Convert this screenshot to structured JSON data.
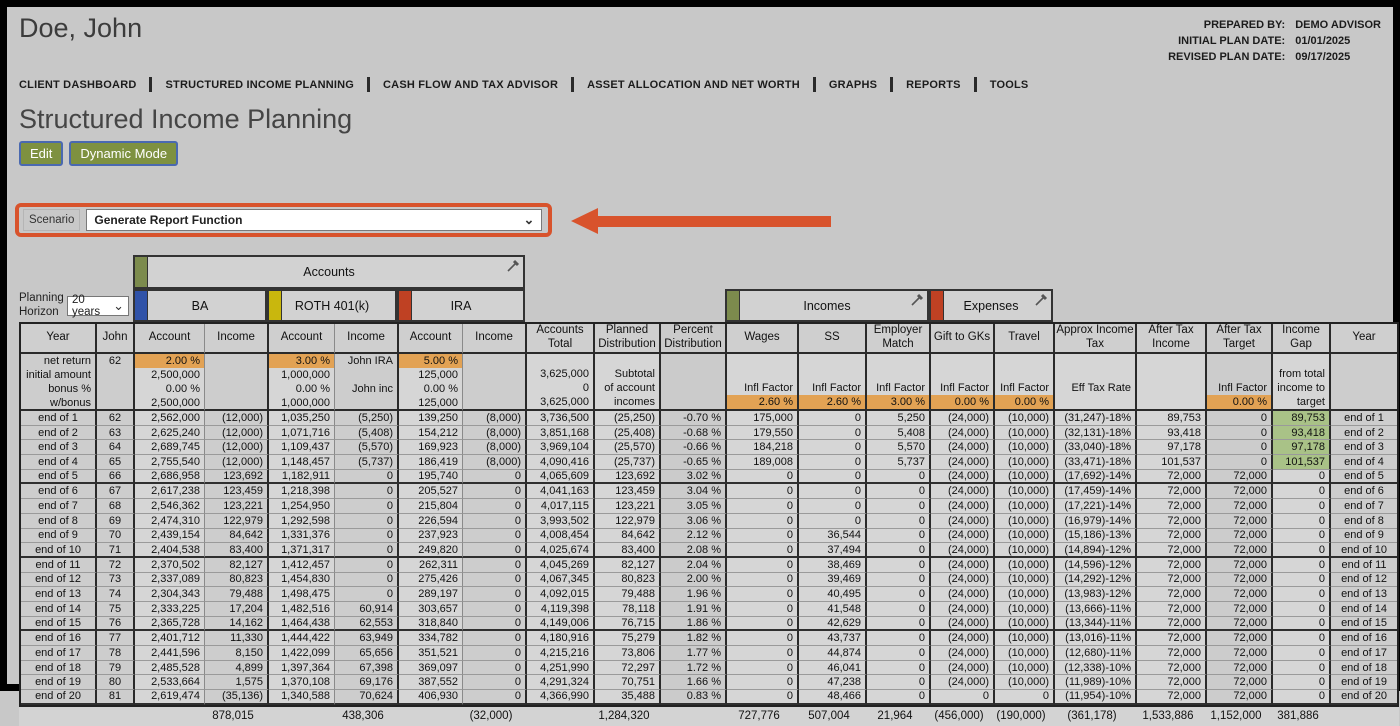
{
  "header": {
    "client_name": "Doe, John",
    "prepared_by_label": "PREPARED BY:",
    "prepared_by": "DEMO ADVISOR",
    "initial_plan_date_label": "INITIAL PLAN DATE:",
    "initial_plan_date": "01/01/2025",
    "revised_plan_date_label": "REVISED PLAN DATE:",
    "revised_plan_date": "09/17/2025"
  },
  "nav": {
    "items": [
      "CLIENT DASHBOARD",
      "STRUCTURED INCOME PLANNING",
      "CASH FLOW AND TAX ADVISOR",
      "ASSET ALLOCATION AND NET WORTH",
      "GRAPHS",
      "REPORTS",
      "TOOLS"
    ]
  },
  "page": {
    "title": "Structured Income Planning",
    "edit_button": "Edit",
    "dynamic_mode_button": "Dynamic Mode"
  },
  "scenario": {
    "label": "Scenario",
    "selected": "Generate Report Function"
  },
  "planning_horizon": {
    "label": "Planning Horizon",
    "selected": "20 years"
  },
  "table": {
    "groups": {
      "accounts": "Accounts",
      "ba": "BA",
      "roth": "ROTH 401(k)",
      "ira": "IRA",
      "incomes": "Incomes",
      "expenses": "Expenses"
    },
    "columns": [
      "Year",
      "John",
      "Account",
      "Income",
      "Account",
      "Income",
      "Account",
      "Income",
      "Accounts Total",
      "Planned Distribution",
      "Percent Distribution",
      "Wages",
      "SS",
      "Employer Match",
      "Gift to GKs",
      "Travel",
      "Approx Income Tax",
      "After Tax Income",
      "After Tax Target",
      "Income Gap",
      "Year"
    ],
    "info_rows": [
      [
        "net return",
        "62",
        "2.00 %",
        "",
        "3.00 %",
        "John IRA",
        "5.00 %",
        "",
        "",
        "",
        "",
        "",
        "",
        "",
        "",
        "",
        "",
        "",
        "",
        "",
        ""
      ],
      [
        "initial amount",
        "",
        "2,500,000",
        "",
        "1,000,000",
        "",
        "125,000",
        "",
        "3,625,000",
        "Subtotal",
        "",
        "",
        "",
        "",
        "",
        "",
        "",
        "",
        "",
        "from total",
        ""
      ],
      [
        "bonus %",
        "",
        "0.00 %",
        "",
        "0.00 %",
        "John inc",
        "0.00 %",
        "",
        "0",
        "of account",
        "",
        "Infl Factor",
        "Infl Factor",
        "Infl Factor",
        "Infl Factor",
        "Infl Factor",
        "Eff Tax Rate",
        "",
        "Infl Factor",
        "income to",
        ""
      ],
      [
        "w/bonus",
        "",
        "2,500,000",
        "",
        "1,000,000",
        "",
        "125,000",
        "",
        "3,625,000",
        "incomes",
        "",
        "2.60 %",
        "2.60 %",
        "3.00 %",
        "0.00 %",
        "0.00 %",
        "",
        "",
        "0.00 %",
        "target",
        ""
      ]
    ],
    "rows": [
      [
        "end of 1",
        "62",
        "2,562,000",
        "(12,000)",
        "1,035,250",
        "(5,250)",
        "139,250",
        "(8,000)",
        "3,736,500",
        "(25,250)",
        "-0.70 %",
        "175,000",
        "0",
        "5,250",
        "(24,000)",
        "(10,000)",
        "(31,247)-18%",
        "89,753",
        "0",
        "89,753",
        "end of 1"
      ],
      [
        "end of 2",
        "63",
        "2,625,240",
        "(12,000)",
        "1,071,716",
        "(5,408)",
        "154,212",
        "(8,000)",
        "3,851,168",
        "(25,408)",
        "-0.68 %",
        "179,550",
        "0",
        "5,408",
        "(24,000)",
        "(10,000)",
        "(32,131)-18%",
        "93,418",
        "0",
        "93,418",
        "end of 2"
      ],
      [
        "end of 3",
        "64",
        "2,689,745",
        "(12,000)",
        "1,109,437",
        "(5,570)",
        "169,923",
        "(8,000)",
        "3,969,104",
        "(25,570)",
        "-0.66 %",
        "184,218",
        "0",
        "5,570",
        "(24,000)",
        "(10,000)",
        "(33,040)-18%",
        "97,178",
        "0",
        "97,178",
        "end of 3"
      ],
      [
        "end of 4",
        "65",
        "2,755,540",
        "(12,000)",
        "1,148,457",
        "(5,737)",
        "186,419",
        "(8,000)",
        "4,090,416",
        "(25,737)",
        "-0.65 %",
        "189,008",
        "0",
        "5,737",
        "(24,000)",
        "(10,000)",
        "(33,471)-18%",
        "101,537",
        "0",
        "101,537",
        "end of 4"
      ],
      [
        "end of 5",
        "66",
        "2,686,958",
        "123,692",
        "1,182,911",
        "0",
        "195,740",
        "0",
        "4,065,609",
        "123,692",
        "3.02 %",
        "0",
        "0",
        "0",
        "(24,000)",
        "(10,000)",
        "(17,692)-14%",
        "72,000",
        "72,000",
        "0",
        "end of 5"
      ],
      [
        "end of 6",
        "67",
        "2,617,238",
        "123,459",
        "1,218,398",
        "0",
        "205,527",
        "0",
        "4,041,163",
        "123,459",
        "3.04 %",
        "0",
        "0",
        "0",
        "(24,000)",
        "(10,000)",
        "(17,459)-14%",
        "72,000",
        "72,000",
        "0",
        "end of 6"
      ],
      [
        "end of 7",
        "68",
        "2,546,362",
        "123,221",
        "1,254,950",
        "0",
        "215,804",
        "0",
        "4,017,115",
        "123,221",
        "3.05 %",
        "0",
        "0",
        "0",
        "(24,000)",
        "(10,000)",
        "(17,221)-14%",
        "72,000",
        "72,000",
        "0",
        "end of 7"
      ],
      [
        "end of 8",
        "69",
        "2,474,310",
        "122,979",
        "1,292,598",
        "0",
        "226,594",
        "0",
        "3,993,502",
        "122,979",
        "3.06 %",
        "0",
        "0",
        "0",
        "(24,000)",
        "(10,000)",
        "(16,979)-14%",
        "72,000",
        "72,000",
        "0",
        "end of 8"
      ],
      [
        "end of 9",
        "70",
        "2,439,154",
        "84,642",
        "1,331,376",
        "0",
        "237,923",
        "0",
        "4,008,454",
        "84,642",
        "2.12 %",
        "0",
        "36,544",
        "0",
        "(24,000)",
        "(10,000)",
        "(15,186)-13%",
        "72,000",
        "72,000",
        "0",
        "end of 9"
      ],
      [
        "end of 10",
        "71",
        "2,404,538",
        "83,400",
        "1,371,317",
        "0",
        "249,820",
        "0",
        "4,025,674",
        "83,400",
        "2.08 %",
        "0",
        "37,494",
        "0",
        "(24,000)",
        "(10,000)",
        "(14,894)-12%",
        "72,000",
        "72,000",
        "0",
        "end of 10"
      ],
      [
        "end of 11",
        "72",
        "2,370,502",
        "82,127",
        "1,412,457",
        "0",
        "262,311",
        "0",
        "4,045,269",
        "82,127",
        "2.04 %",
        "0",
        "38,469",
        "0",
        "(24,000)",
        "(10,000)",
        "(14,596)-12%",
        "72,000",
        "72,000",
        "0",
        "end of 11"
      ],
      [
        "end of 12",
        "73",
        "2,337,089",
        "80,823",
        "1,454,830",
        "0",
        "275,426",
        "0",
        "4,067,345",
        "80,823",
        "2.00 %",
        "0",
        "39,469",
        "0",
        "(24,000)",
        "(10,000)",
        "(14,292)-12%",
        "72,000",
        "72,000",
        "0",
        "end of 12"
      ],
      [
        "end of 13",
        "74",
        "2,304,343",
        "79,488",
        "1,498,475",
        "0",
        "289,197",
        "0",
        "4,092,015",
        "79,488",
        "1.96 %",
        "0",
        "40,495",
        "0",
        "(24,000)",
        "(10,000)",
        "(13,983)-12%",
        "72,000",
        "72,000",
        "0",
        "end of 13"
      ],
      [
        "end of 14",
        "75",
        "2,333,225",
        "17,204",
        "1,482,516",
        "60,914",
        "303,657",
        "0",
        "4,119,398",
        "78,118",
        "1.91 %",
        "0",
        "41,548",
        "0",
        "(24,000)",
        "(10,000)",
        "(13,666)-11%",
        "72,000",
        "72,000",
        "0",
        "end of 14"
      ],
      [
        "end of 15",
        "76",
        "2,365,728",
        "14,162",
        "1,464,438",
        "62,553",
        "318,840",
        "0",
        "4,149,006",
        "76,715",
        "1.86 %",
        "0",
        "42,629",
        "0",
        "(24,000)",
        "(10,000)",
        "(13,344)-11%",
        "72,000",
        "72,000",
        "0",
        "end of 15"
      ],
      [
        "end of 16",
        "77",
        "2,401,712",
        "11,330",
        "1,444,422",
        "63,949",
        "334,782",
        "0",
        "4,180,916",
        "75,279",
        "1.82 %",
        "0",
        "43,737",
        "0",
        "(24,000)",
        "(10,000)",
        "(13,016)-11%",
        "72,000",
        "72,000",
        "0",
        "end of 16"
      ],
      [
        "end of 17",
        "78",
        "2,441,596",
        "8,150",
        "1,422,099",
        "65,656",
        "351,521",
        "0",
        "4,215,216",
        "73,806",
        "1.77 %",
        "0",
        "44,874",
        "0",
        "(24,000)",
        "(10,000)",
        "(12,680)-11%",
        "72,000",
        "72,000",
        "0",
        "end of 17"
      ],
      [
        "end of 18",
        "79",
        "2,485,528",
        "4,899",
        "1,397,364",
        "67,398",
        "369,097",
        "0",
        "4,251,990",
        "72,297",
        "1.72 %",
        "0",
        "46,041",
        "0",
        "(24,000)",
        "(10,000)",
        "(12,338)-10%",
        "72,000",
        "72,000",
        "0",
        "end of 18"
      ],
      [
        "end of 19",
        "80",
        "2,533,664",
        "1,575",
        "1,370,108",
        "69,176",
        "387,552",
        "0",
        "4,291,324",
        "70,751",
        "1.66 %",
        "0",
        "47,238",
        "0",
        "(24,000)",
        "(10,000)",
        "(11,989)-10%",
        "72,000",
        "72,000",
        "0",
        "end of 19"
      ],
      [
        "end of 20",
        "81",
        "2,619,474",
        "(35,136)",
        "1,340,588",
        "70,624",
        "406,930",
        "0",
        "4,366,990",
        "35,488",
        "0.83 %",
        "0",
        "48,466",
        "0",
        "0",
        "0",
        "(11,954)-10%",
        "72,000",
        "72,000",
        "0",
        "end of 20"
      ]
    ],
    "totals": [
      "",
      "",
      "",
      "878,015",
      "",
      "438,306",
      "",
      "(32,000)",
      "",
      "1,284,320",
      "",
      "727,776",
      "507,004",
      "21,964",
      "(456,000)",
      "(190,000)",
      "(361,178)",
      "1,533,886",
      "1,152,000",
      "381,886",
      ""
    ]
  },
  "colors": {
    "swatch_green": "#7c8b4d",
    "swatch_blue": "#2f52a8",
    "swatch_yellow": "#c9b70d",
    "swatch_red": "#bf4123",
    "highlight_orange_cell": "#e2a254",
    "highlight_pink_cell": "#d4a0a0",
    "highlight_green_cell": "#a9c287",
    "callout_red": "#d8532c",
    "button_green": "#7e9140"
  }
}
